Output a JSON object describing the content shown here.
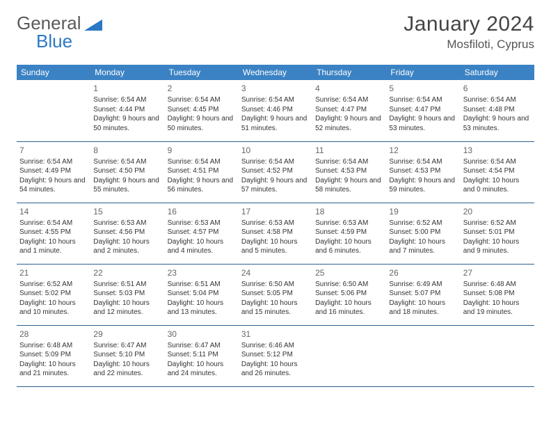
{
  "logo": {
    "part1": "General",
    "part2": "Blue"
  },
  "title": "January 2024",
  "location": "Mosfiloti, Cyprus",
  "colors": {
    "header_bg": "#3b82c4",
    "header_text": "#ffffff",
    "row_border": "#2b5f8c",
    "logo_gray": "#5a5a5a",
    "logo_blue": "#2b78c4",
    "text": "#333333"
  },
  "day_headers": [
    "Sunday",
    "Monday",
    "Tuesday",
    "Wednesday",
    "Thursday",
    "Friday",
    "Saturday"
  ],
  "weeks": [
    [
      null,
      {
        "n": "1",
        "sr": "Sunrise: 6:54 AM",
        "ss": "Sunset: 4:44 PM",
        "dl": "Daylight: 9 hours and 50 minutes."
      },
      {
        "n": "2",
        "sr": "Sunrise: 6:54 AM",
        "ss": "Sunset: 4:45 PM",
        "dl": "Daylight: 9 hours and 50 minutes."
      },
      {
        "n": "3",
        "sr": "Sunrise: 6:54 AM",
        "ss": "Sunset: 4:46 PM",
        "dl": "Daylight: 9 hours and 51 minutes."
      },
      {
        "n": "4",
        "sr": "Sunrise: 6:54 AM",
        "ss": "Sunset: 4:47 PM",
        "dl": "Daylight: 9 hours and 52 minutes."
      },
      {
        "n": "5",
        "sr": "Sunrise: 6:54 AM",
        "ss": "Sunset: 4:47 PM",
        "dl": "Daylight: 9 hours and 53 minutes."
      },
      {
        "n": "6",
        "sr": "Sunrise: 6:54 AM",
        "ss": "Sunset: 4:48 PM",
        "dl": "Daylight: 9 hours and 53 minutes."
      }
    ],
    [
      {
        "n": "7",
        "sr": "Sunrise: 6:54 AM",
        "ss": "Sunset: 4:49 PM",
        "dl": "Daylight: 9 hours and 54 minutes."
      },
      {
        "n": "8",
        "sr": "Sunrise: 6:54 AM",
        "ss": "Sunset: 4:50 PM",
        "dl": "Daylight: 9 hours and 55 minutes."
      },
      {
        "n": "9",
        "sr": "Sunrise: 6:54 AM",
        "ss": "Sunset: 4:51 PM",
        "dl": "Daylight: 9 hours and 56 minutes."
      },
      {
        "n": "10",
        "sr": "Sunrise: 6:54 AM",
        "ss": "Sunset: 4:52 PM",
        "dl": "Daylight: 9 hours and 57 minutes."
      },
      {
        "n": "11",
        "sr": "Sunrise: 6:54 AM",
        "ss": "Sunset: 4:53 PM",
        "dl": "Daylight: 9 hours and 58 minutes."
      },
      {
        "n": "12",
        "sr": "Sunrise: 6:54 AM",
        "ss": "Sunset: 4:53 PM",
        "dl": "Daylight: 9 hours and 59 minutes."
      },
      {
        "n": "13",
        "sr": "Sunrise: 6:54 AM",
        "ss": "Sunset: 4:54 PM",
        "dl": "Daylight: 10 hours and 0 minutes."
      }
    ],
    [
      {
        "n": "14",
        "sr": "Sunrise: 6:54 AM",
        "ss": "Sunset: 4:55 PM",
        "dl": "Daylight: 10 hours and 1 minute."
      },
      {
        "n": "15",
        "sr": "Sunrise: 6:53 AM",
        "ss": "Sunset: 4:56 PM",
        "dl": "Daylight: 10 hours and 2 minutes."
      },
      {
        "n": "16",
        "sr": "Sunrise: 6:53 AM",
        "ss": "Sunset: 4:57 PM",
        "dl": "Daylight: 10 hours and 4 minutes."
      },
      {
        "n": "17",
        "sr": "Sunrise: 6:53 AM",
        "ss": "Sunset: 4:58 PM",
        "dl": "Daylight: 10 hours and 5 minutes."
      },
      {
        "n": "18",
        "sr": "Sunrise: 6:53 AM",
        "ss": "Sunset: 4:59 PM",
        "dl": "Daylight: 10 hours and 6 minutes."
      },
      {
        "n": "19",
        "sr": "Sunrise: 6:52 AM",
        "ss": "Sunset: 5:00 PM",
        "dl": "Daylight: 10 hours and 7 minutes."
      },
      {
        "n": "20",
        "sr": "Sunrise: 6:52 AM",
        "ss": "Sunset: 5:01 PM",
        "dl": "Daylight: 10 hours and 9 minutes."
      }
    ],
    [
      {
        "n": "21",
        "sr": "Sunrise: 6:52 AM",
        "ss": "Sunset: 5:02 PM",
        "dl": "Daylight: 10 hours and 10 minutes."
      },
      {
        "n": "22",
        "sr": "Sunrise: 6:51 AM",
        "ss": "Sunset: 5:03 PM",
        "dl": "Daylight: 10 hours and 12 minutes."
      },
      {
        "n": "23",
        "sr": "Sunrise: 6:51 AM",
        "ss": "Sunset: 5:04 PM",
        "dl": "Daylight: 10 hours and 13 minutes."
      },
      {
        "n": "24",
        "sr": "Sunrise: 6:50 AM",
        "ss": "Sunset: 5:05 PM",
        "dl": "Daylight: 10 hours and 15 minutes."
      },
      {
        "n": "25",
        "sr": "Sunrise: 6:50 AM",
        "ss": "Sunset: 5:06 PM",
        "dl": "Daylight: 10 hours and 16 minutes."
      },
      {
        "n": "26",
        "sr": "Sunrise: 6:49 AM",
        "ss": "Sunset: 5:07 PM",
        "dl": "Daylight: 10 hours and 18 minutes."
      },
      {
        "n": "27",
        "sr": "Sunrise: 6:48 AM",
        "ss": "Sunset: 5:08 PM",
        "dl": "Daylight: 10 hours and 19 minutes."
      }
    ],
    [
      {
        "n": "28",
        "sr": "Sunrise: 6:48 AM",
        "ss": "Sunset: 5:09 PM",
        "dl": "Daylight: 10 hours and 21 minutes."
      },
      {
        "n": "29",
        "sr": "Sunrise: 6:47 AM",
        "ss": "Sunset: 5:10 PM",
        "dl": "Daylight: 10 hours and 22 minutes."
      },
      {
        "n": "30",
        "sr": "Sunrise: 6:47 AM",
        "ss": "Sunset: 5:11 PM",
        "dl": "Daylight: 10 hours and 24 minutes."
      },
      {
        "n": "31",
        "sr": "Sunrise: 6:46 AM",
        "ss": "Sunset: 5:12 PM",
        "dl": "Daylight: 10 hours and 26 minutes."
      },
      null,
      null,
      null
    ]
  ]
}
